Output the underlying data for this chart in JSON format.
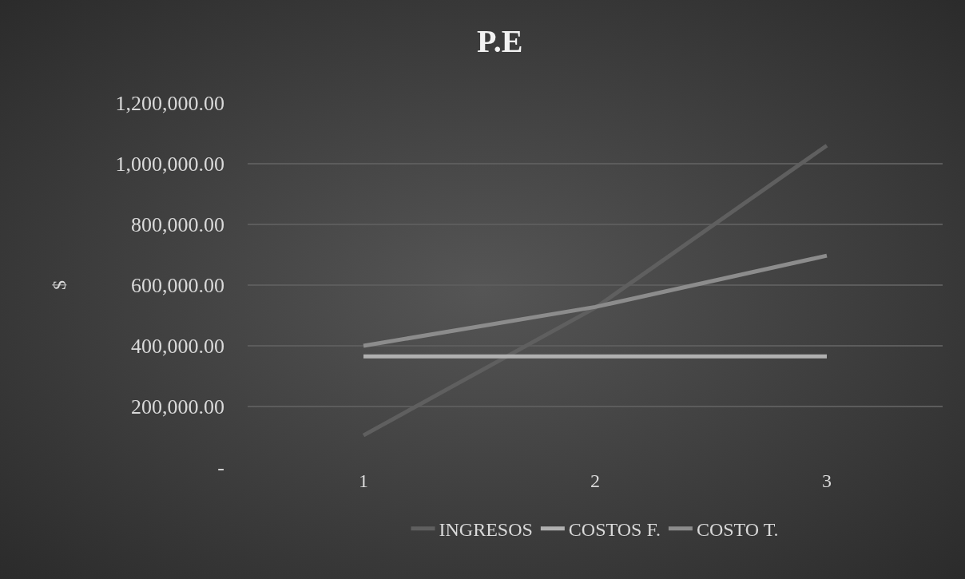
{
  "chart_data": {
    "type": "line",
    "title": "P.E",
    "ylabel": "$",
    "categories": [
      "1",
      "2",
      "3"
    ],
    "series": [
      {
        "name": "INGRESOS",
        "color": "#5f5f5f",
        "values": [
          105000,
          525000,
          1060000
        ]
      },
      {
        "name": "COSTOS F.",
        "color": "#b0b0b0",
        "values": [
          365000,
          365000,
          365000
        ]
      },
      {
        "name": "COSTO T.",
        "color": "#8c8c8c",
        "values": [
          400000,
          528000,
          697000
        ]
      }
    ],
    "ylim": [
      0,
      1200000
    ],
    "yticks": [
      {
        "value": 0,
        "label": "-"
      },
      {
        "value": 200000,
        "label": "200,000.00"
      },
      {
        "value": 400000,
        "label": "400,000.00"
      },
      {
        "value": 600000,
        "label": "600,000.00"
      },
      {
        "value": 800000,
        "label": "800,000.00"
      },
      {
        "value": 1000000,
        "label": "1,000,000.00"
      },
      {
        "value": 1200000,
        "label": "1,200,000.00"
      }
    ],
    "grid": "y",
    "legend": "bottom",
    "marker": "none",
    "line_style": "solid"
  }
}
